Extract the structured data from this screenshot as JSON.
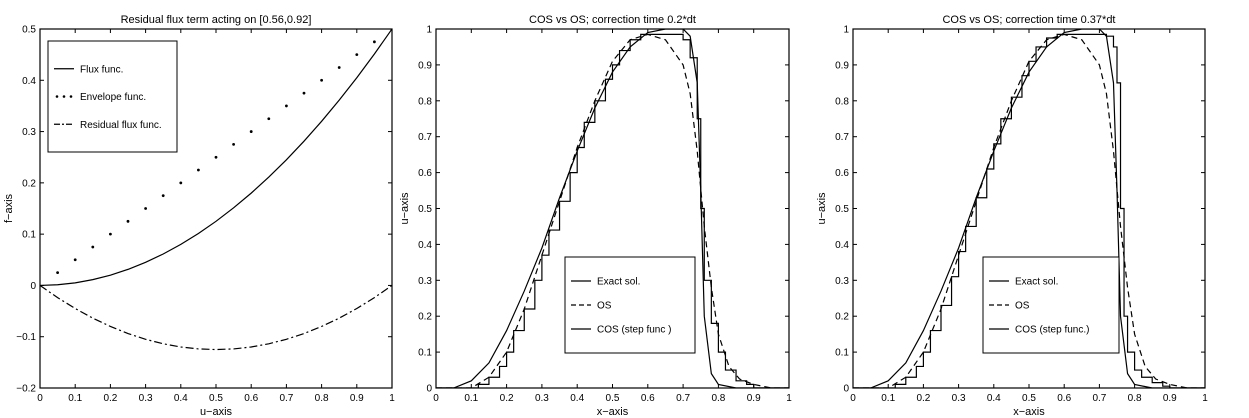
{
  "chart_data": [
    {
      "type": "line",
      "title": "Residual flux term acting on [0.56,0.92]",
      "xlabel": "u−axis",
      "ylabel": "f−axis",
      "xlim": [
        0,
        1
      ],
      "ylim": [
        -0.2,
        0.5
      ],
      "xticks": [
        0,
        0.1,
        0.2,
        0.3,
        0.4,
        0.5,
        0.6,
        0.7,
        0.8,
        0.9,
        1
      ],
      "xtick_labels": [
        "0",
        "0.1",
        "0.2",
        "0.3",
        "0.4",
        "0.5",
        "0.6",
        "0.7",
        "0.8",
        "0.9",
        "1"
      ],
      "yticks": [
        -0.2,
        -0.1,
        0,
        0.1,
        0.2,
        0.3,
        0.4,
        0.5
      ],
      "ytick_labels": [
        "−0.2",
        "−0.1",
        "0",
        "0.1",
        "0.2",
        "0.3",
        "0.4",
        "0.5"
      ],
      "grid": false,
      "legend_position": "top-left",
      "series": [
        {
          "name": "Flux func.",
          "style": "solid",
          "x": [
            0,
            0.05,
            0.1,
            0.15,
            0.2,
            0.25,
            0.3,
            0.35,
            0.4,
            0.45,
            0.5,
            0.55,
            0.6,
            0.65,
            0.7,
            0.75,
            0.8,
            0.85,
            0.9,
            0.95,
            1
          ],
          "y": [
            0,
            0.0013,
            0.005,
            0.0113,
            0.02,
            0.0313,
            0.045,
            0.0613,
            0.08,
            0.1013,
            0.125,
            0.1513,
            0.18,
            0.2113,
            0.245,
            0.2813,
            0.32,
            0.3613,
            0.405,
            0.4513,
            0.5
          ]
        },
        {
          "name": "Envelope func.",
          "style": "dotted",
          "x": [
            0,
            0.05,
            0.1,
            0.15,
            0.2,
            0.25,
            0.3,
            0.35,
            0.4,
            0.45,
            0.5,
            0.55,
            0.6,
            0.65,
            0.7,
            0.75,
            0.8,
            0.85,
            0.9,
            0.95,
            1
          ],
          "y": [
            0,
            0.025,
            0.05,
            0.075,
            0.1,
            0.125,
            0.15,
            0.175,
            0.2,
            0.225,
            0.25,
            0.275,
            0.3,
            0.325,
            0.35,
            0.375,
            0.4,
            0.425,
            0.45,
            0.475,
            0.5
          ]
        },
        {
          "name": "Residual flux func.",
          "style": "dashdot",
          "x": [
            0,
            0.05,
            0.1,
            0.15,
            0.2,
            0.25,
            0.3,
            0.35,
            0.4,
            0.45,
            0.5,
            0.55,
            0.6,
            0.65,
            0.7,
            0.75,
            0.8,
            0.85,
            0.9,
            0.95,
            1
          ],
          "y": [
            0,
            -0.0238,
            -0.045,
            -0.0638,
            -0.08,
            -0.0938,
            -0.105,
            -0.1138,
            -0.12,
            -0.1238,
            -0.125,
            -0.1238,
            -0.12,
            -0.1138,
            -0.105,
            -0.0938,
            -0.08,
            -0.0638,
            -0.045,
            -0.0238,
            0
          ]
        }
      ]
    },
    {
      "type": "line",
      "title": "COS vs OS; correction time 0.2*dt",
      "xlabel": "x−axis",
      "ylabel": "u−axis",
      "xlim": [
        0,
        1
      ],
      "ylim": [
        0,
        1
      ],
      "xticks": [
        0,
        0.1,
        0.2,
        0.3,
        0.4,
        0.5,
        0.6,
        0.7,
        0.8,
        0.9,
        1
      ],
      "xtick_labels": [
        "0",
        "0.1",
        "0.2",
        "0.3",
        "0.4",
        "0.5",
        "0.6",
        "0.7",
        "0.8",
        "0.9",
        "1"
      ],
      "yticks": [
        0,
        0.1,
        0.2,
        0.3,
        0.4,
        0.5,
        0.6,
        0.7,
        0.8,
        0.9,
        1
      ],
      "ytick_labels": [
        "0",
        "0.1",
        "0.2",
        "0.3",
        "0.4",
        "0.5",
        "0.6",
        "0.7",
        "0.8",
        "0.9",
        "1"
      ],
      "grid": false,
      "legend_position": "bottom-right",
      "series": [
        {
          "name": "Exact sol.",
          "style": "solid",
          "x": [
            0,
            0.05,
            0.1,
            0.15,
            0.2,
            0.25,
            0.3,
            0.35,
            0.4,
            0.45,
            0.5,
            0.55,
            0.6,
            0.65,
            0.7,
            0.72,
            0.74,
            0.75,
            0.76,
            0.78,
            0.8,
            0.85,
            1
          ],
          "y": [
            0,
            0,
            0.02,
            0.07,
            0.16,
            0.27,
            0.39,
            0.53,
            0.66,
            0.78,
            0.88,
            0.95,
            0.99,
            1,
            1,
            0.98,
            0.85,
            0.55,
            0.2,
            0.04,
            0.01,
            0,
            0
          ]
        },
        {
          "name": "OS",
          "style": "dashed",
          "x": [
            0,
            0.1,
            0.15,
            0.2,
            0.25,
            0.3,
            0.35,
            0.4,
            0.45,
            0.5,
            0.55,
            0.6,
            0.65,
            0.7,
            0.72,
            0.74,
            0.76,
            0.78,
            0.8,
            0.83,
            0.86,
            0.9,
            0.95,
            1
          ],
          "y": [
            0,
            0,
            0.03,
            0.1,
            0.22,
            0.37,
            0.52,
            0.67,
            0.8,
            0.91,
            0.97,
            0.985,
            0.97,
            0.9,
            0.82,
            0.66,
            0.45,
            0.28,
            0.15,
            0.06,
            0.025,
            0.01,
            0,
            0
          ]
        },
        {
          "name": "COS (step func )",
          "style": "step",
          "x": [
            0,
            0.1,
            0.12,
            0.15,
            0.18,
            0.2,
            0.22,
            0.25,
            0.28,
            0.3,
            0.32,
            0.35,
            0.38,
            0.4,
            0.42,
            0.45,
            0.48,
            0.5,
            0.52,
            0.55,
            0.58,
            0.6,
            0.65,
            0.7,
            0.72,
            0.74,
            0.75,
            0.76,
            0.78,
            0.8,
            0.82,
            0.85,
            0.88,
            0.9,
            1
          ],
          "y": [
            0,
            0,
            0.01,
            0.03,
            0.06,
            0.1,
            0.16,
            0.22,
            0.3,
            0.37,
            0.44,
            0.52,
            0.6,
            0.67,
            0.74,
            0.8,
            0.86,
            0.9,
            0.94,
            0.97,
            0.985,
            0.985,
            0.985,
            0.97,
            0.92,
            0.75,
            0.5,
            0.3,
            0.18,
            0.1,
            0.05,
            0.02,
            0.01,
            0,
            0
          ]
        }
      ]
    },
    {
      "type": "line",
      "title": "COS vs OS; correction time 0.37*dt",
      "xlabel": "x−axis",
      "ylabel": "u−axis",
      "xlim": [
        0,
        1
      ],
      "ylim": [
        0,
        1
      ],
      "xticks": [
        0,
        0.1,
        0.2,
        0.3,
        0.4,
        0.5,
        0.6,
        0.7,
        0.8,
        0.9,
        1
      ],
      "xtick_labels": [
        "0",
        "0.1",
        "0.2",
        "0.3",
        "0.4",
        "0.5",
        "0.6",
        "0.7",
        "0.8",
        "0.9",
        "1"
      ],
      "yticks": [
        0,
        0.1,
        0.2,
        0.3,
        0.4,
        0.5,
        0.6,
        0.7,
        0.8,
        0.9,
        1
      ],
      "ytick_labels": [
        "0",
        "0.1",
        "0.2",
        "0.3",
        "0.4",
        "0.5",
        "0.6",
        "0.7",
        "0.8",
        "0.9",
        "1"
      ],
      "grid": false,
      "legend_position": "bottom-right",
      "series": [
        {
          "name": "Exact sol.",
          "style": "solid",
          "x": [
            0,
            0.05,
            0.1,
            0.15,
            0.2,
            0.25,
            0.3,
            0.35,
            0.4,
            0.45,
            0.5,
            0.55,
            0.6,
            0.65,
            0.7,
            0.72,
            0.74,
            0.75,
            0.76,
            0.78,
            0.8,
            0.85,
            1
          ],
          "y": [
            0,
            0,
            0.02,
            0.07,
            0.16,
            0.27,
            0.39,
            0.53,
            0.66,
            0.78,
            0.88,
            0.95,
            0.99,
            1,
            1,
            0.98,
            0.85,
            0.55,
            0.2,
            0.04,
            0.01,
            0,
            0
          ]
        },
        {
          "name": "OS",
          "style": "dashed",
          "x": [
            0,
            0.1,
            0.15,
            0.2,
            0.25,
            0.3,
            0.35,
            0.4,
            0.45,
            0.5,
            0.55,
            0.6,
            0.65,
            0.7,
            0.72,
            0.74,
            0.76,
            0.78,
            0.8,
            0.83,
            0.86,
            0.9,
            0.95,
            1
          ],
          "y": [
            0,
            0,
            0.03,
            0.1,
            0.22,
            0.37,
            0.52,
            0.67,
            0.8,
            0.91,
            0.97,
            0.985,
            0.97,
            0.9,
            0.82,
            0.66,
            0.45,
            0.28,
            0.15,
            0.06,
            0.025,
            0.01,
            0,
            0
          ]
        },
        {
          "name": "COS (step func.)",
          "style": "step",
          "x": [
            0,
            0.1,
            0.12,
            0.15,
            0.18,
            0.2,
            0.22,
            0.25,
            0.28,
            0.3,
            0.32,
            0.35,
            0.38,
            0.4,
            0.42,
            0.45,
            0.48,
            0.5,
            0.52,
            0.55,
            0.58,
            0.6,
            0.65,
            0.7,
            0.72,
            0.74,
            0.75,
            0.76,
            0.77,
            0.78,
            0.8,
            0.82,
            0.85,
            0.88,
            0.9,
            1
          ],
          "y": [
            0,
            0,
            0.01,
            0.03,
            0.06,
            0.1,
            0.16,
            0.23,
            0.31,
            0.38,
            0.45,
            0.53,
            0.61,
            0.68,
            0.75,
            0.81,
            0.87,
            0.91,
            0.95,
            0.975,
            0.985,
            0.985,
            0.985,
            0.985,
            0.98,
            0.95,
            0.85,
            0.5,
            0.2,
            0.1,
            0.05,
            0.03,
            0.015,
            0.005,
            0,
            0
          ]
        }
      ]
    }
  ]
}
